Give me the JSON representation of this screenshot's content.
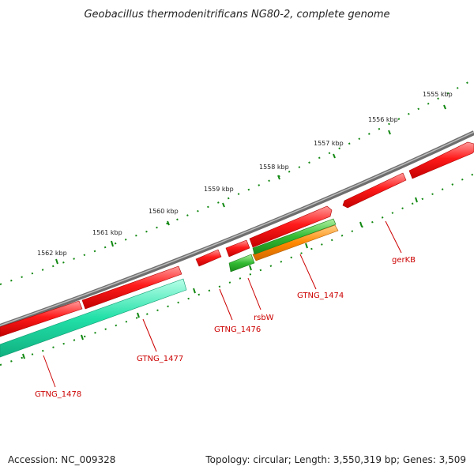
{
  "title": "Geobacillus thermodenitrificans NG80-2, complete genome",
  "colors": {
    "backbone": "#7a7a7a",
    "forward_gene": "#ee1111",
    "reverse_gene_teal": "#22e0a8",
    "reverse_gene_green": "#33bb33",
    "reverse_gene_orange": "#ff8800",
    "tick": "#118811",
    "label": "#cc0000"
  },
  "scale_ticks": [
    "1555 kbp",
    "1556 kbp",
    "1557 kbp",
    "1558 kbp",
    "1559 kbp",
    "1560 kbp",
    "1561 kbp",
    "1562 kbp"
  ],
  "genes": [
    {
      "label": "gerKB",
      "strand": "forward"
    },
    {
      "label": "GTNG_1474",
      "strand": "reverse"
    },
    {
      "label": "rsbW",
      "strand": "reverse"
    },
    {
      "label": "GTNG_1476",
      "strand": "forward"
    },
    {
      "label": "GTNG_1477",
      "strand": "forward"
    },
    {
      "label": "GTNG_1478",
      "strand": "forward"
    }
  ],
  "footer": {
    "accession": "Accession: NC_009328",
    "summary": "Topology: circular; Length: 3,550,319 bp; Genes: 3,509"
  }
}
